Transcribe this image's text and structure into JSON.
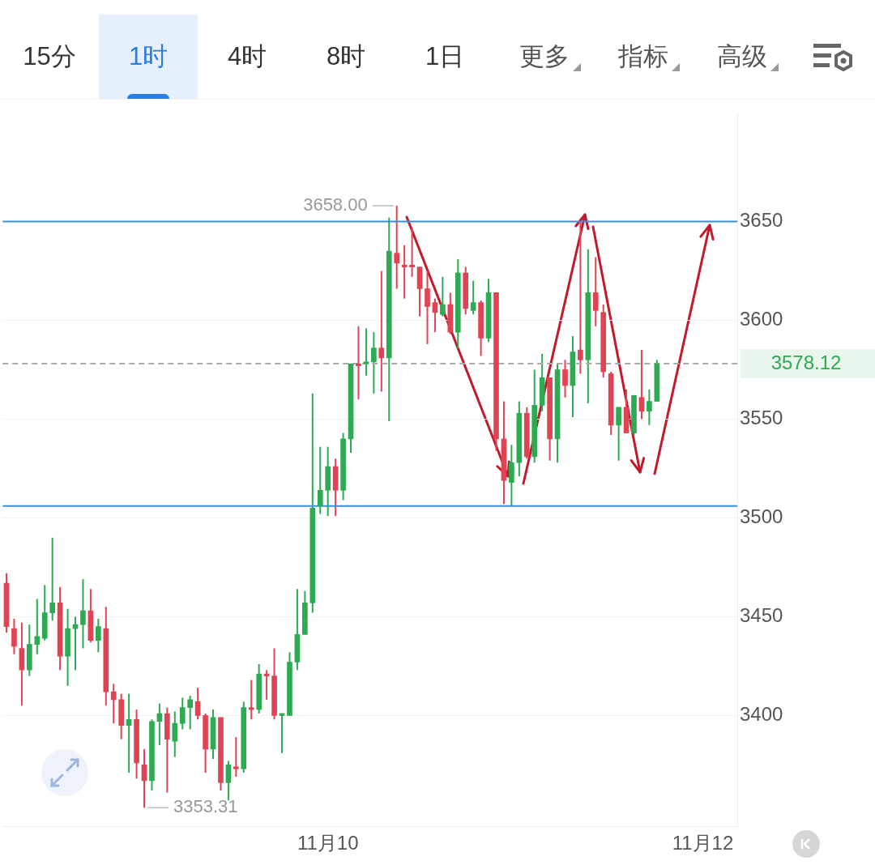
{
  "chart_data": {
    "type": "candlestick",
    "categories": [
      null,
      null,
      null,
      null,
      null,
      null,
      null,
      null,
      null,
      null,
      null,
      null,
      null,
      null,
      null,
      null,
      null,
      null,
      null,
      null,
      null,
      null,
      null,
      null,
      null,
      null,
      null,
      null,
      null,
      null,
      null,
      null,
      null,
      null,
      null,
      null,
      null,
      null,
      null,
      null,
      null,
      null,
      "11月10",
      null,
      null,
      null,
      null,
      null,
      null,
      null,
      null,
      null,
      null,
      null,
      null,
      null,
      null,
      null,
      null,
      null,
      null,
      null,
      null,
      null,
      null,
      null,
      null,
      null,
      null,
      null,
      null,
      null,
      null,
      null,
      null,
      null,
      null,
      null,
      null,
      null,
      null,
      null,
      null,
      null,
      null,
      null,
      null,
      null,
      null,
      null,
      null,
      "11月12",
      null,
      null,
      null,
      null
    ],
    "ohlc": [
      [
        3467,
        3472,
        3442,
        3445
      ],
      [
        3444,
        3449,
        3431,
        3435
      ],
      [
        3434,
        3447,
        3405,
        3423
      ],
      [
        3423,
        3446,
        3420,
        3436
      ],
      [
        3436,
        3459,
        3431,
        3440
      ],
      [
        3439,
        3466,
        3438,
        3452
      ],
      [
        3452,
        3490,
        3448,
        3457
      ],
      [
        3457,
        3465,
        3423,
        3430
      ],
      [
        3430,
        3454,
        3415,
        3444
      ],
      [
        3444,
        3450,
        3423,
        3446
      ],
      [
        3446,
        3469,
        3434,
        3453
      ],
      [
        3453,
        3464,
        3437,
        3438
      ],
      [
        3438,
        3449,
        3432,
        3445
      ],
      [
        3444,
        3455,
        3405,
        3412
      ],
      [
        3412,
        3416,
        3396,
        3408
      ],
      [
        3408,
        3411,
        3388,
        3395
      ],
      [
        3395,
        3411,
        3371,
        3398
      ],
      [
        3398,
        3403,
        3368,
        3376
      ],
      [
        3375,
        3383,
        3353.31,
        3367
      ],
      [
        3367,
        3398,
        3362,
        3397
      ],
      [
        3397,
        3406,
        3385,
        3401
      ],
      [
        3401,
        3404,
        3361,
        3388
      ],
      [
        3387,
        3402,
        3379,
        3396
      ],
      [
        3396,
        3409,
        3393,
        3404
      ],
      [
        3404,
        3410,
        3393,
        3408
      ],
      [
        3407,
        3414,
        3398,
        3400
      ],
      [
        3400,
        3401,
        3371,
        3383
      ],
      [
        3383,
        3403,
        3378,
        3399
      ],
      [
        3399,
        3399,
        3362,
        3366
      ],
      [
        3366,
        3377,
        3357,
        3375
      ],
      [
        3374,
        3389,
        3369,
        3373
      ],
      [
        3373,
        3407,
        3371,
        3404
      ],
      [
        3404,
        3418,
        3398,
        3403
      ],
      [
        3403,
        3426,
        3401,
        3421
      ],
      [
        3421,
        3423,
        3408,
        3420
      ],
      [
        3420,
        3434,
        3398,
        3400
      ],
      [
        3400,
        3401,
        3381,
        3401
      ],
      [
        3400,
        3432,
        3400,
        3427
      ],
      [
        3427,
        3464,
        3423,
        3441
      ],
      [
        3441,
        3463,
        3441,
        3457
      ],
      [
        3457,
        3563,
        3452,
        3505
      ],
      [
        3506,
        3536,
        3502,
        3514
      ],
      [
        3514,
        3536,
        3501,
        3526
      ],
      [
        3526,
        3530,
        3501,
        3514
      ],
      [
        3514,
        3543,
        3509,
        3540
      ],
      [
        3540,
        3578,
        3533,
        3578
      ],
      [
        3578,
        3597,
        3560,
        3577
      ],
      [
        3578,
        3596,
        3572,
        3579
      ],
      [
        3579,
        3594,
        3563,
        3586
      ],
      [
        3586,
        3625,
        3564,
        3581
      ],
      [
        3581,
        3652,
        3549,
        3635
      ],
      [
        3634,
        3658,
        3616,
        3629
      ],
      [
        3628,
        3638,
        3611,
        3627
      ],
      [
        3628,
        3647,
        3622,
        3627
      ],
      [
        3627,
        3627,
        3602,
        3616
      ],
      [
        3616,
        3625,
        3588,
        3607
      ],
      [
        3609,
        3611,
        3594,
        3604
      ],
      [
        3603,
        3622,
        3602,
        3608
      ],
      [
        3608,
        3614,
        3593,
        3594
      ],
      [
        3594,
        3631,
        3586,
        3624
      ],
      [
        3624,
        3627,
        3603,
        3606
      ],
      [
        3605,
        3620,
        3603,
        3609
      ],
      [
        3609,
        3610,
        3582,
        3591
      ],
      [
        3591,
        3621,
        3589,
        3614
      ],
      [
        3614,
        3614,
        3534,
        3540
      ],
      [
        3540,
        3559,
        3507,
        3519
      ],
      [
        3518,
        3537,
        3506,
        3528
      ],
      [
        3528,
        3559,
        3521,
        3553
      ],
      [
        3553,
        3556,
        3530,
        3531
      ],
      [
        3531,
        3575,
        3528,
        3557
      ],
      [
        3557,
        3583,
        3554,
        3571
      ],
      [
        3571,
        3571,
        3529,
        3540
      ],
      [
        3540,
        3578,
        3528,
        3575
      ],
      [
        3575,
        3580,
        3561,
        3567
      ],
      [
        3567,
        3592,
        3551,
        3584
      ],
      [
        3585,
        3650,
        3573,
        3580
      ],
      [
        3580,
        3636,
        3558,
        3614
      ],
      [
        3614,
        3632,
        3597,
        3605
      ],
      [
        3604,
        3608,
        3571,
        3574
      ],
      [
        3573,
        3574,
        3542,
        3547
      ],
      [
        3547,
        3556,
        3529,
        3556
      ],
      [
        3556,
        3565,
        3543,
        3543
      ],
      [
        3543,
        3562,
        3542,
        3562
      ],
      [
        3561,
        3585,
        3550,
        3554
      ],
      [
        3554,
        3565,
        3547,
        3559
      ],
      [
        3559,
        3580,
        3559,
        3578.12
      ],
      null,
      null,
      null,
      null,
      null,
      null,
      null,
      null,
      null,
      null
    ],
    "colors": [
      "#e04452",
      "#e04452",
      "#e04452",
      "#2daa52",
      "#2daa52",
      "#2daa52",
      "#2daa52",
      "#e04452",
      "#2daa52",
      "#2daa52",
      "#2daa52",
      "#e04452",
      "#2daa52",
      "#e04452",
      "#e04452",
      "#e04452",
      "#2daa52",
      "#e04452",
      "#e04452",
      "#2daa52",
      "#2daa52",
      "#e04452",
      "#2daa52",
      "#2daa52",
      "#2daa52",
      "#e04452",
      "#e04452",
      "#2daa52",
      "#e04452",
      "#2daa52",
      "#e04452",
      "#2daa52",
      "#e04452",
      "#2daa52",
      "#e04452",
      "#e04452",
      "#2daa52",
      "#2daa52",
      "#2daa52",
      "#2daa52",
      "#2daa52",
      "#2daa52",
      "#2daa52",
      "#e04452",
      "#2daa52",
      "#2daa52",
      "#e04452",
      "#2daa52",
      "#2daa52",
      "#e04452",
      "#2daa52",
      "#e04452",
      "#e04452",
      "#e04452",
      "#e04452",
      "#e04452",
      "#e04452",
      "#2daa52",
      "#e04452",
      "#2daa52",
      "#e04452",
      "#2daa52",
      "#e04452",
      "#2daa52",
      "#e04452",
      "#e04452",
      "#2daa52",
      "#2daa52",
      "#e04452",
      "#2daa52",
      "#2daa52",
      "#e04452",
      "#2daa52",
      "#e04452",
      "#2daa52",
      "#e04452",
      "#2daa52",
      "#e04452",
      "#e04452",
      "#e04452",
      "#2daa52",
      "#e04452",
      "#2daa52",
      "#e04452",
      "#2daa52",
      "#2daa52",
      null,
      null,
      null,
      null,
      null,
      null,
      null,
      null,
      null,
      null
    ],
    "ylim": [
      3344,
      3705
    ],
    "yticks": [
      3400,
      3450,
      3500,
      3550,
      3600,
      3650
    ],
    "grid": "y",
    "ref_lines": [
      {
        "axis": "y",
        "value": 3650,
        "color": "#3a8fd9",
        "line_style": "solid"
      },
      {
        "axis": "y",
        "value": 3506,
        "color": "#3a8fd9",
        "line_style": "solid"
      },
      {
        "axis": "y",
        "value": 3578.12,
        "label": "3578.12",
        "color": "#aaaaaa",
        "line_style": "dashed"
      }
    ],
    "annotations": [
      "3658.00",
      "3353.31",
      "15分",
      "1时",
      "4时",
      "8时",
      "1日",
      "更多",
      "指标",
      "高级"
    ]
  }
}
